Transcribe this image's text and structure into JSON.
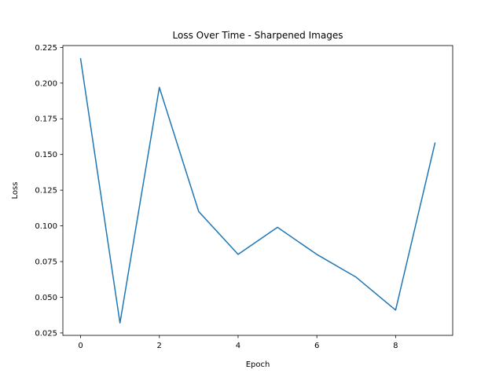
{
  "chart_data": {
    "type": "line",
    "title": "Loss Over Time - Sharpened Images",
    "xlabel": "Epoch",
    "ylabel": "Loss",
    "xlim": [
      -0.45,
      9.45
    ],
    "ylim": [
      0.0233,
      0.2263
    ],
    "xticks": [
      0,
      2,
      4,
      6,
      8
    ],
    "xtick_labels": [
      "0",
      "2",
      "4",
      "6",
      "8"
    ],
    "yticks": [
      0.025,
      0.05,
      0.075,
      0.1,
      0.125,
      0.15,
      0.175,
      0.2,
      0.225
    ],
    "ytick_labels": [
      "0.025",
      "0.050",
      "0.075",
      "0.100",
      "0.125",
      "0.150",
      "0.175",
      "0.200",
      "0.225"
    ],
    "grid": false,
    "series": [
      {
        "color": "#1f77b4",
        "x": [
          0,
          1,
          2,
          3,
          4,
          5,
          6,
          7,
          8,
          9
        ],
        "y": [
          0.217,
          0.032,
          0.197,
          0.11,
          0.08,
          0.099,
          0.08,
          0.064,
          0.041,
          0.158
        ]
      }
    ]
  }
}
